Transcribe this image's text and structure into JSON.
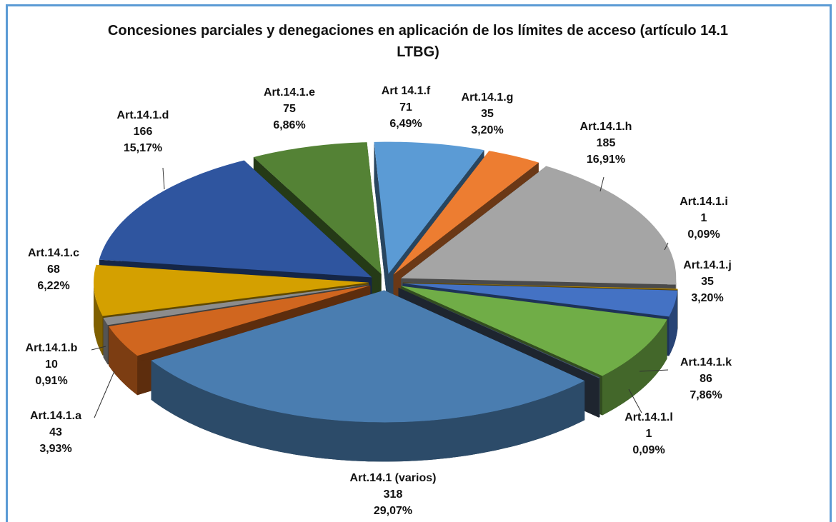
{
  "chart_data": {
    "type": "pie3d",
    "title": "Concesiones parciales y denegaciones en aplicación de los límites de acceso (artículo 14.1 LTBG)",
    "categories": [
      "Art 14.1.f",
      "Art.14.1.g",
      "Art.14.1.h",
      "Art.14.1.i",
      "Art.14.1.j",
      "Art.14.1.k",
      "Art.14.1.l",
      "Art.14.1 (varios)",
      "Art.14.1.a",
      "Art.14.1.b",
      "Art.14.1.c",
      "Art.14.1.d",
      "Art.14.1.e"
    ],
    "values": [
      71,
      35,
      185,
      1,
      35,
      86,
      1,
      318,
      43,
      10,
      68,
      166,
      75
    ],
    "percent_labels": [
      "6,49%",
      "3,20%",
      "16,91%",
      "0,09%",
      "3,20%",
      "7,86%",
      "0,09%",
      "29,07%",
      "3,93%",
      "0,91%",
      "6,22%",
      "15,17%",
      "6,86%"
    ],
    "colors": [
      "#5b9bd5",
      "#ed7d31",
      "#a5a5a5",
      "#c09000",
      "#4472c4",
      "#70ad47",
      "#44546a",
      "#4a7db0",
      "#d0661f",
      "#8c8c8c",
      "#d4a000",
      "#2f559f",
      "#548235"
    ]
  }
}
